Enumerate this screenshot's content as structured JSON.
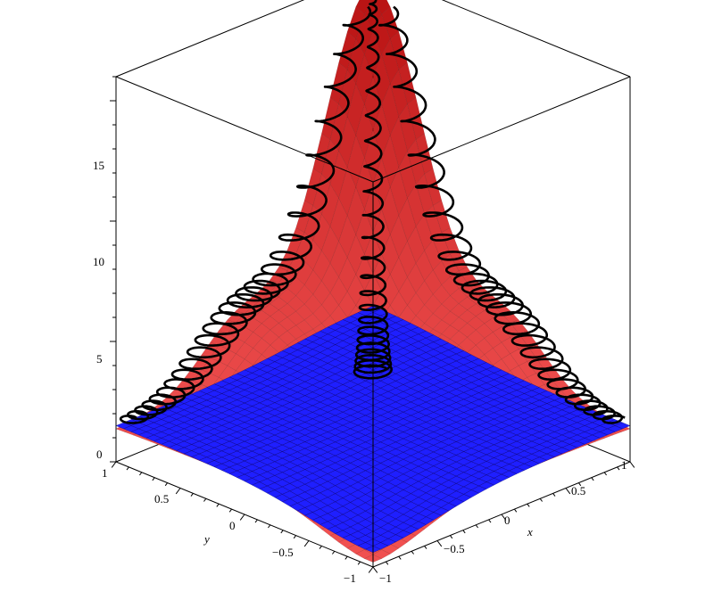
{
  "chart_data": {
    "type": "surface3d",
    "title": "",
    "xlabel": "x",
    "ylabel": "y",
    "zlabel": "",
    "x_ticks": [
      "−1",
      "−0.5",
      "0",
      "0.5",
      "1"
    ],
    "y_ticks": [
      "−1",
      "−0.5",
      "0",
      "0.5",
      "1"
    ],
    "z_ticks": [
      "0",
      "5",
      "10",
      "15"
    ],
    "xlim": [
      -1,
      1
    ],
    "ylim": [
      -1,
      1
    ],
    "zlim": [
      0,
      16
    ],
    "series": [
      {
        "kind": "surface",
        "color": "#cc0000"
      },
      {
        "kind": "plane",
        "color": "#1a1aff",
        "z": 1.5
      },
      {
        "kind": "spiral-curve",
        "color": "#000000"
      }
    ],
    "grid": false,
    "box": true
  }
}
